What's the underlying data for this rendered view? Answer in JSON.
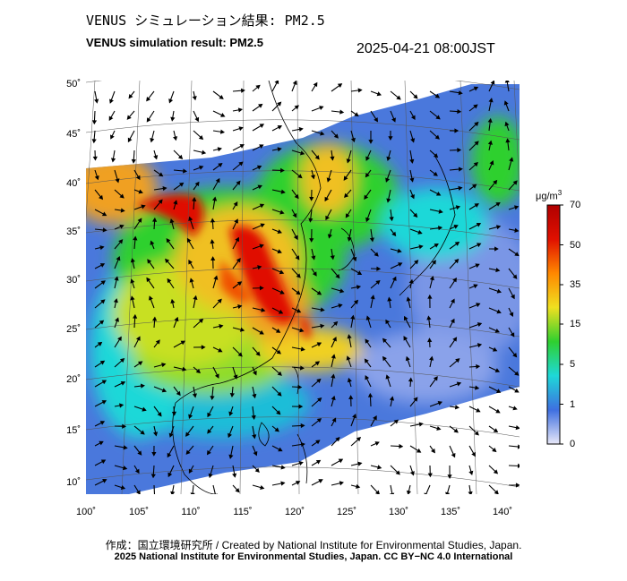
{
  "title_jp": "VENUS シミュレーション結果: PM2.5",
  "title_en": "VENUS simulation result: PM2.5",
  "timestamp": "2025-04-21 08:00JST",
  "lat_labels": [
    "50˚",
    "45˚",
    "40˚",
    "35˚",
    "30˚",
    "25˚",
    "20˚",
    "15˚",
    "10˚"
  ],
  "lon_labels": [
    "100˚",
    "105˚",
    "110˚",
    "115˚",
    "120˚",
    "125˚",
    "130˚",
    "135˚",
    "140˚"
  ],
  "colorbar": {
    "unit": "μg/m",
    "unit_superscript": "3",
    "ticks": [
      "70",
      "50",
      "35",
      "15",
      "5",
      "1",
      "0"
    ],
    "colors": [
      "#e8e8f8",
      "#3e6fe0",
      "#1ed8d8",
      "#2fd02f",
      "#f0e020",
      "#ff8800",
      "#e01000",
      "#b00000"
    ]
  },
  "credits": {
    "line1": "作成：国立環境研究所 / Created by National Institute for Environmental Studies, Japan.",
    "line2": "2025 National Institute for Environmental Studies, Japan. CC BY−NC 4.0 International"
  }
}
